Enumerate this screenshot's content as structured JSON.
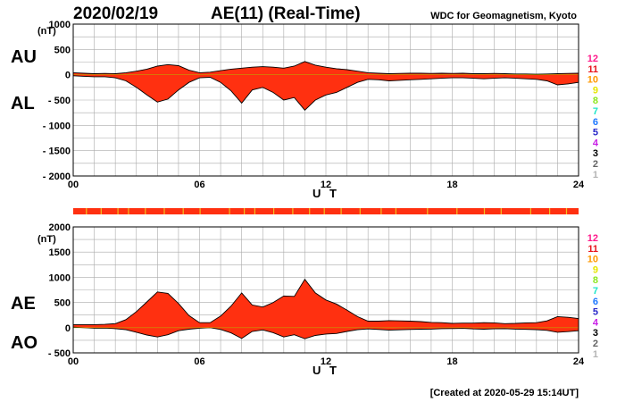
{
  "header": {
    "date": "2020/02/19",
    "title": "AE(11) (Real-Time)",
    "organization": "WDC for Geomagnetism, Kyoto"
  },
  "footer": {
    "created": "[Created at 2020-05-29 15:14UT]"
  },
  "colors": {
    "fill": "#ff3010",
    "outline": "#000000",
    "grid": "#aaaaaa",
    "quality_bar": "#ff3010",
    "quality_tick": "#f0c020"
  },
  "station_labels": [
    {
      "label": "12",
      "color": "#ff1a8c"
    },
    {
      "label": "11",
      "color": "#e8141e"
    },
    {
      "label": "10",
      "color": "#ff9900"
    },
    {
      "label": "9",
      "color": "#e6e600"
    },
    {
      "label": "8",
      "color": "#8ce61e"
    },
    {
      "label": "7",
      "color": "#1ee6c8"
    },
    {
      "label": "6",
      "color": "#1e78ff"
    },
    {
      "label": "5",
      "color": "#2828c8"
    },
    {
      "label": "4",
      "color": "#c81ee6"
    },
    {
      "label": "3",
      "color": "#000000"
    },
    {
      "label": "2",
      "color": "#646464"
    },
    {
      "label": "1",
      "color": "#b4b4b4"
    }
  ],
  "chart_data": [
    {
      "type": "area",
      "id": "au-al",
      "ylabel_top": "AU",
      "ylabel_bottom": "AL",
      "unit": "(nT)",
      "xlabel": "U T",
      "xlim": [
        0,
        24
      ],
      "ylim": [
        -2000,
        1000
      ],
      "x_ticks": [
        0,
        6,
        12,
        18,
        24
      ],
      "x_tick_labels": [
        "00",
        "06",
        "12",
        "18",
        "24"
      ],
      "y_ticks": [
        1000,
        500,
        0,
        -500,
        -1000,
        -1500,
        -2000
      ],
      "y_tick_labels": [
        "1000",
        "500",
        "0",
        "- 500",
        "- 1000",
        "- 1500",
        "- 2000"
      ],
      "grid": true,
      "x": [
        0,
        0.5,
        1,
        1.5,
        2,
        2.5,
        3,
        3.5,
        4,
        4.5,
        5,
        5.5,
        6,
        6.5,
        7,
        7.5,
        8,
        8.5,
        9,
        9.5,
        10,
        10.5,
        11,
        11.5,
        12,
        12.5,
        13,
        13.5,
        14,
        14.5,
        15,
        15.5,
        16,
        16.5,
        17,
        17.5,
        18,
        18.5,
        19,
        19.5,
        20,
        20.5,
        21,
        21.5,
        22,
        22.5,
        23,
        23.5,
        24
      ],
      "series": [
        {
          "name": "AU",
          "values": [
            40,
            30,
            20,
            25,
            20,
            40,
            70,
            110,
            170,
            200,
            180,
            90,
            40,
            50,
            80,
            110,
            130,
            150,
            160,
            150,
            130,
            170,
            260,
            190,
            150,
            120,
            100,
            70,
            40,
            30,
            20,
            25,
            30,
            30,
            25,
            30,
            25,
            30,
            20,
            20,
            25,
            20,
            15,
            15,
            10,
            15,
            20,
            25,
            30
          ]
        },
        {
          "name": "AL",
          "values": [
            -20,
            -30,
            -40,
            -40,
            -60,
            -120,
            -250,
            -400,
            -540,
            -480,
            -300,
            -150,
            -60,
            -50,
            -150,
            -320,
            -560,
            -300,
            -250,
            -350,
            -500,
            -450,
            -700,
            -500,
            -400,
            -350,
            -250,
            -150,
            -90,
            -100,
            -120,
            -110,
            -100,
            -90,
            -80,
            -70,
            -60,
            -60,
            -70,
            -80,
            -70,
            -60,
            -70,
            -80,
            -90,
            -120,
            -200,
            -180,
            -150
          ]
        }
      ]
    },
    {
      "type": "area",
      "id": "ae-ao",
      "ylabel_top": "AE",
      "ylabel_bottom": "AO",
      "unit": "(nT)",
      "xlabel": "U T",
      "xlim": [
        0,
        24
      ],
      "ylim": [
        -500,
        2000
      ],
      "x_ticks": [
        0,
        6,
        12,
        18,
        24
      ],
      "x_tick_labels": [
        "00",
        "06",
        "12",
        "18",
        "24"
      ],
      "y_ticks": [
        2000,
        1500,
        1000,
        500,
        0,
        -500
      ],
      "y_tick_labels": [
        "2000",
        "1500",
        "1000",
        "500",
        "0",
        "- 500"
      ],
      "grid": true,
      "x": [
        0,
        0.5,
        1,
        1.5,
        2,
        2.5,
        3,
        3.5,
        4,
        4.5,
        5,
        5.5,
        6,
        6.5,
        7,
        7.5,
        8,
        8.5,
        9,
        9.5,
        10,
        10.5,
        11,
        11.5,
        12,
        12.5,
        13,
        13.5,
        14,
        14.5,
        15,
        15.5,
        16,
        16.5,
        17,
        17.5,
        18,
        18.5,
        19,
        19.5,
        20,
        20.5,
        21,
        21.5,
        22,
        22.5,
        23,
        23.5,
        24
      ],
      "series": [
        {
          "name": "AE",
          "values": [
            60,
            60,
            60,
            65,
            80,
            160,
            320,
            510,
            710,
            680,
            480,
            240,
            100,
            100,
            230,
            430,
            690,
            450,
            410,
            500,
            630,
            620,
            960,
            690,
            550,
            470,
            350,
            220,
            130,
            130,
            140,
            135,
            130,
            120,
            105,
            100,
            85,
            90,
            90,
            100,
            95,
            80,
            85,
            95,
            100,
            135,
            220,
            205,
            180
          ]
        },
        {
          "name": "AO",
          "values": [
            10,
            0,
            -10,
            -8,
            -20,
            -40,
            -90,
            -145,
            -185,
            -140,
            -60,
            -30,
            -10,
            0,
            -35,
            -105,
            -215,
            -75,
            -45,
            -100,
            -185,
            -140,
            -220,
            -155,
            -125,
            -115,
            -75,
            -40,
            -25,
            -35,
            -50,
            -43,
            -35,
            -30,
            -28,
            -20,
            -18,
            -15,
            -25,
            -30,
            -23,
            -20,
            -28,
            -33,
            -40,
            -53,
            -90,
            -78,
            -60
          ]
        }
      ]
    }
  ]
}
